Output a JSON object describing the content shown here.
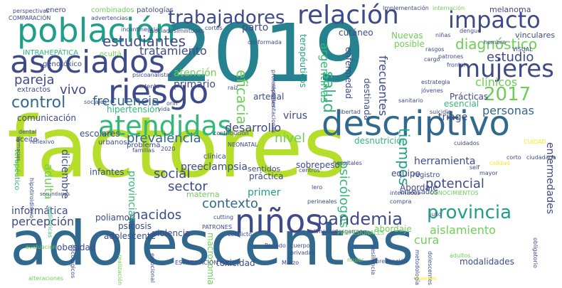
{
  "palette": {
    "green": "#b5de2b",
    "teal": "#1f9e89",
    "blue": "#31688e",
    "indigo": "#3e4a89",
    "purple": "#482878",
    "mint": "#35b779",
    "lime": "#6ece58",
    "yellow": "#fde725",
    "dark": "#440154",
    "cyan": "#26828e"
  },
  "words": [
    {
      "text": "2019",
      "c": "cyan"
    },
    {
      "text": "factores",
      "c": "green"
    },
    {
      "text": "adolescentes",
      "c": "blue"
    },
    {
      "text": "descriptivo",
      "c": "blue"
    },
    {
      "text": "población",
      "c": "teal"
    },
    {
      "text": "asociados",
      "c": "indigo"
    },
    {
      "text": "riesgo",
      "c": "indigo"
    },
    {
      "text": "niños",
      "c": "indigo"
    },
    {
      "text": "atendidas",
      "c": "mint"
    },
    {
      "text": "relación",
      "c": "indigo"
    },
    {
      "text": "impacto",
      "c": "indigo"
    },
    {
      "text": "mujeres",
      "c": "indigo"
    },
    {
      "text": "trabajadores",
      "c": "indigo"
    },
    {
      "text": "2017",
      "c": "lime"
    },
    {
      "text": "pandemia",
      "c": "indigo"
    },
    {
      "text": "provincia",
      "c": "teal"
    },
    {
      "text": "control",
      "c": "blue"
    },
    {
      "text": "diagnóstico",
      "c": "lime"
    },
    {
      "text": "estudiantes",
      "c": "indigo"
    },
    {
      "text": "salud",
      "c": "mint"
    },
    {
      "text": "tiempos",
      "c": "teal"
    },
    {
      "text": "eficacia",
      "c": "lime"
    },
    {
      "text": "estudio",
      "c": "indigo"
    },
    {
      "text": "pareja",
      "c": "indigo"
    },
    {
      "text": "vivo",
      "c": "indigo"
    },
    {
      "text": "frecuencia",
      "c": "blue"
    },
    {
      "text": "tratamiento",
      "c": "indigo"
    },
    {
      "text": "parto",
      "c": "indigo"
    },
    {
      "text": "clínicos",
      "c": "lime"
    },
    {
      "text": "personas",
      "c": "blue"
    },
    {
      "text": "argentinas",
      "c": "mint"
    },
    {
      "text": "frecuentes",
      "c": "indigo"
    },
    {
      "text": "prevalencia",
      "c": "blue"
    },
    {
      "text": "desarrollo",
      "c": "indigo"
    },
    {
      "text": "nivel",
      "c": "lime"
    },
    {
      "text": "adulta",
      "c": "lime"
    },
    {
      "text": "diciembre",
      "c": "indigo"
    },
    {
      "text": "social",
      "c": "indigo"
    },
    {
      "text": "sector",
      "c": "indigo"
    },
    {
      "text": "contexto",
      "c": "blue"
    },
    {
      "text": "nacidos",
      "c": "indigo"
    },
    {
      "text": "percepción",
      "c": "indigo"
    },
    {
      "text": "informática",
      "c": "indigo"
    },
    {
      "text": "provincias",
      "c": "mint"
    },
    {
      "text": "psicólogos",
      "c": "mint"
    },
    {
      "text": "potencial",
      "c": "indigo"
    },
    {
      "text": "aislamiento",
      "c": "lime"
    },
    {
      "text": "enfermedades",
      "c": "indigo"
    },
    {
      "text": "herramienta",
      "c": "indigo"
    },
    {
      "text": "preeclampsia",
      "c": "indigo"
    },
    {
      "text": "primer",
      "c": "teal"
    },
    {
      "text": "cura",
      "c": "lime"
    },
    {
      "text": "virus",
      "c": "indigo"
    },
    {
      "text": "atención",
      "c": "lime"
    },
    {
      "text": "primario",
      "c": "indigo"
    },
    {
      "text": "triage",
      "c": "indigo"
    },
    {
      "text": "Prácticas",
      "c": "indigo"
    },
    {
      "text": "esencial",
      "c": "mint"
    },
    {
      "text": "comunicación",
      "c": "indigo"
    },
    {
      "text": "hipertensión",
      "c": "mint"
    },
    {
      "text": "escolares",
      "c": "indigo"
    },
    {
      "text": "infantes",
      "c": "indigo"
    },
    {
      "text": "poliamor",
      "c": "indigo"
    },
    {
      "text": "violencia",
      "c": "indigo"
    },
    {
      "text": "psicosis",
      "c": "indigo"
    },
    {
      "text": "adolescente",
      "c": "indigo"
    },
    {
      "text": "obesidad",
      "c": "indigo"
    },
    {
      "text": "macrosomía",
      "c": "lime"
    },
    {
      "text": "toxicidad",
      "c": "indigo"
    },
    {
      "text": "modalidades",
      "c": "indigo"
    },
    {
      "text": "Abordaje",
      "c": "indigo"
    },
    {
      "text": "abordaje",
      "c": "lime"
    },
    {
      "text": "sobrepeso",
      "c": "indigo"
    },
    {
      "text": "desnutrición",
      "c": "mint"
    },
    {
      "text": "equipo",
      "c": "indigo"
    },
    {
      "text": "práctica",
      "c": "indigo"
    },
    {
      "text": "sentidos",
      "c": "indigo"
    },
    {
      "text": "materna",
      "c": "lime"
    },
    {
      "text": "melanoma",
      "c": "indigo"
    },
    {
      "text": "vinculares",
      "c": "indigo"
    },
    {
      "text": "enfermedad",
      "c": "indigo"
    },
    {
      "text": "Nuevas",
      "c": "lime"
    },
    {
      "text": "posible",
      "c": "lime"
    },
    {
      "text": "cutáneo",
      "c": "indigo"
    },
    {
      "text": "terapéuticos",
      "c": "teal"
    },
    {
      "text": "destinada",
      "c": "indigo"
    },
    {
      "text": "arterial",
      "c": "indigo"
    },
    {
      "text": "registro",
      "c": "indigo"
    },
    {
      "text": "envasados",
      "c": "indigo"
    },
    {
      "text": "ocultà",
      "c": "lime"
    },
    {
      "text": "INTRAHEPÁTICA",
      "c": "mint"
    },
    {
      "text": "genotóxico",
      "c": "indigo"
    },
    {
      "text": "extractos",
      "c": "indigo"
    },
    {
      "text": "aceite",
      "c": "indigo"
    },
    {
      "text": "terapéutico",
      "c": "mint"
    },
    {
      "text": "urbanos",
      "c": "indigo"
    },
    {
      "text": "clínica",
      "c": "indigo"
    },
    {
      "text": "problema",
      "c": "indigo"
    },
    {
      "text": "enero",
      "c": "indigo"
    },
    {
      "text": "combinados",
      "c": "lime"
    },
    {
      "text": "patologías",
      "c": "indigo"
    },
    {
      "text": "internación",
      "c": "lime"
    },
    {
      "text": "advertencias",
      "c": "indigo"
    },
    {
      "text": "psicoanalistas",
      "c": "indigo"
    },
    {
      "text": "estrategia",
      "c": "indigo"
    },
    {
      "text": "jóvenes",
      "c": "indigo"
    },
    {
      "text": "libertad",
      "c": "indigo"
    },
    {
      "text": "suicidio",
      "c": "indigo"
    },
    {
      "text": "rasgos",
      "c": "indigo"
    },
    {
      "text": "patrones",
      "c": "indigo"
    },
    {
      "text": "cargo",
      "c": "indigo"
    },
    {
      "text": "frontal",
      "c": "indigo"
    },
    {
      "text": "compra",
      "c": "indigo"
    },
    {
      "text": "internados",
      "c": "indigo"
    },
    {
      "text": "Periodo",
      "c": "indigo"
    },
    {
      "text": "cuerpo",
      "c": "indigo"
    },
    {
      "text": "privadas",
      "c": "indigo"
    },
    {
      "text": "Marzo",
      "c": "indigo"
    },
    {
      "text": "alimentos",
      "c": "indigo"
    },
    {
      "text": "desgarros",
      "c": "indigo"
    },
    {
      "text": "conflicto",
      "c": "indigo"
    },
    {
      "text": "PATRONES",
      "c": "indigo"
    },
    {
      "text": "cutting",
      "c": "indigo"
    },
    {
      "text": "julio",
      "c": "indigo"
    },
    {
      "text": "CONOCIMIENTOS",
      "c": "lime"
    },
    {
      "text": "PROFESIONALES",
      "c": "lime"
    },
    {
      "text": "self",
      "c": "indigo"
    },
    {
      "text": "calidad",
      "c": "yellow"
    },
    {
      "text": "mayor",
      "c": "indigo"
    },
    {
      "text": "centros",
      "c": "indigo"
    },
    {
      "text": "contribución",
      "c": "indigo"
    },
    {
      "text": "emocional",
      "c": "indigo"
    },
    {
      "text": "resiliencia",
      "c": "indigo"
    },
    {
      "text": "prevención",
      "c": "indigo"
    },
    {
      "text": "metodología",
      "c": "indigo"
    },
    {
      "text": "dolescentes",
      "c": "indigo"
    },
    {
      "text": "adultos",
      "c": "lime"
    },
    {
      "text": "obligatorio",
      "c": "indigo"
    },
    {
      "text": "hipotiroidismo",
      "c": "indigo"
    },
    {
      "text": "familias",
      "c": "indigo"
    },
    {
      "text": "pediátricas",
      "c": "mint"
    },
    {
      "text": "oncológicos",
      "c": "indigo"
    },
    {
      "text": "mujer",
      "c": "lime"
    },
    {
      "text": "alteraciones",
      "c": "lime"
    },
    {
      "text": "evaluación",
      "c": "lime"
    },
    {
      "text": "realización",
      "c": "lime"
    },
    {
      "text": "ESTIMULACIÓN",
      "c": "indigo"
    },
    {
      "text": "perspectivas",
      "c": "indigo"
    },
    {
      "text": "COMPARACIÓN",
      "c": "indigo"
    },
    {
      "text": "asociado",
      "c": "indigo"
    },
    {
      "text": "incontinencia",
      "c": "indigo"
    },
    {
      "text": "cortes",
      "c": "indigo"
    },
    {
      "text": "similitudes",
      "c": "indigo"
    },
    {
      "text": "intento",
      "c": "indigo"
    },
    {
      "text": "orín",
      "c": "indigo"
    },
    {
      "text": "vida",
      "c": "indigo"
    },
    {
      "text": "raíz",
      "c": "indigo"
    },
    {
      "text": "sociales",
      "c": "indigo"
    },
    {
      "text": "dental",
      "c": "indigo"
    },
    {
      "text": "reflexivo",
      "c": "indigo"
    },
    {
      "text": "NEONATAL",
      "c": "indigo"
    },
    {
      "text": "Implementación",
      "c": "indigo"
    },
    {
      "text": "conformada",
      "c": "indigo"
    },
    {
      "text": "niñas",
      "c": "indigo"
    },
    {
      "text": "dengue",
      "c": "indigo"
    },
    {
      "text": "hombre",
      "c": "indigo"
    },
    {
      "text": "VISUAL",
      "c": "indigo"
    },
    {
      "text": "2020",
      "c": "indigo"
    },
    {
      "text": "hospitales",
      "c": "indigo"
    },
    {
      "text": "lero",
      "c": "indigo"
    },
    {
      "text": "perineales",
      "c": "indigo"
    },
    {
      "text": "cuidados",
      "c": "indigo"
    },
    {
      "text": "CUIDAD",
      "c": "yellow"
    },
    {
      "text": "farmacias",
      "c": "indigo"
    },
    {
      "text": "secundarias",
      "c": "indigo"
    },
    {
      "text": "Fuertes",
      "c": "yellow"
    },
    {
      "text": "profesionales",
      "c": "indigo"
    },
    {
      "text": "representaciones",
      "c": "indigo"
    },
    {
      "text": "sanitario",
      "c": "indigo"
    },
    {
      "text": "ciudadana",
      "c": "indigo"
    },
    {
      "text": "corto",
      "c": "indigo"
    }
  ]
}
